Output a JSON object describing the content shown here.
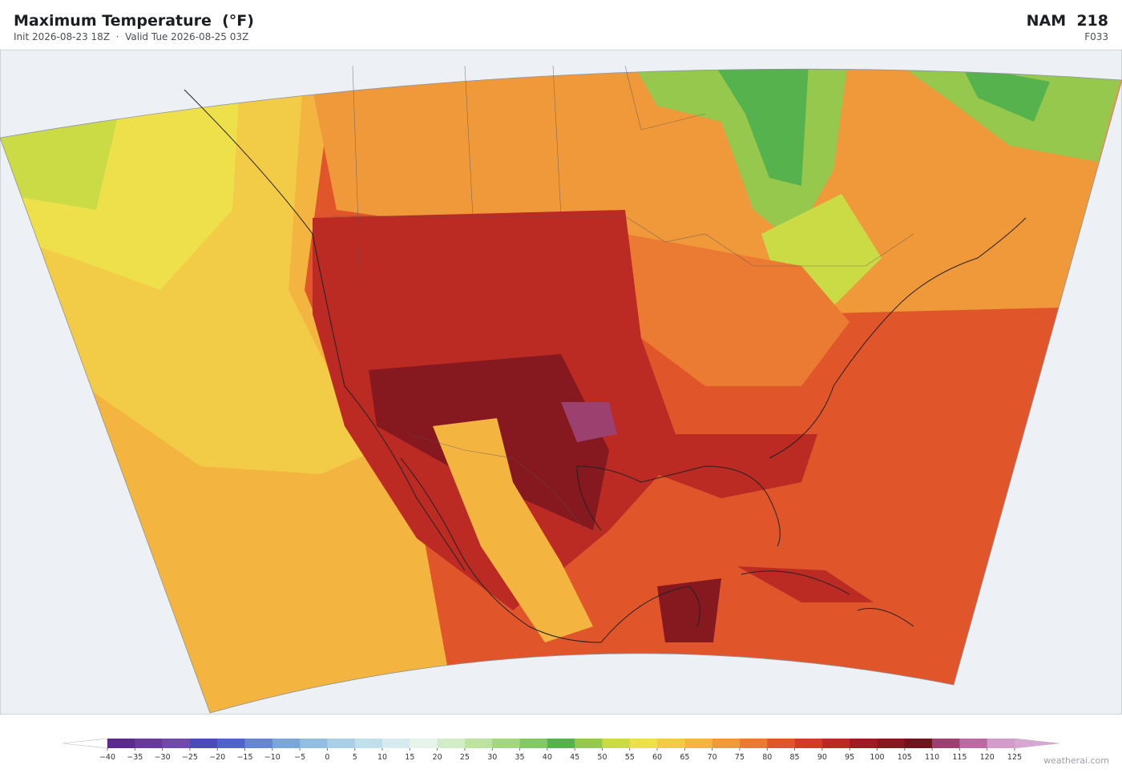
{
  "header": {
    "title": "Maximum Temperature  (°F)",
    "subtitle": "Init 2026-08-23 18Z  ·  Valid Tue 2026-08-25 03Z",
    "model": "NAM  218",
    "forecast_hour": "F033"
  },
  "colorbar": {
    "ticks": [
      {
        "value": -40,
        "label": "−40"
      },
      {
        "value": -35,
        "label": "−35"
      },
      {
        "value": -30,
        "label": "−30"
      },
      {
        "value": -25,
        "label": "−25"
      },
      {
        "value": -20,
        "label": "−20"
      },
      {
        "value": -15,
        "label": "−15"
      },
      {
        "value": -10,
        "label": "−10"
      },
      {
        "value": -5,
        "label": "−5"
      },
      0,
      5,
      10,
      15,
      20,
      25,
      30,
      35,
      40,
      45,
      50,
      55,
      60,
      65,
      70,
      75,
      80,
      85,
      90,
      95,
      100,
      105,
      110,
      115,
      120,
      125
    ],
    "colors": [
      "#5b2a8c",
      "#6a3a9a",
      "#6f4aab",
      "#4a4ab8",
      "#4f63c8",
      "#6487d0",
      "#7aa6d8",
      "#90bde0",
      "#a9d0e6",
      "#c0dfec",
      "#d6ebef",
      "#e6f3ea",
      "#d3ecc8",
      "#bde3a0",
      "#a2d67f",
      "#82c865",
      "#55b24c",
      "#95c84d",
      "#cbdb45",
      "#ede04a",
      "#f3cc47",
      "#f3b540",
      "#f0993a",
      "#eb7b32",
      "#e0562a",
      "#d23b26",
      "#bb2a23",
      "#9e1c22",
      "#861820",
      "#6e141b",
      "#9c4070",
      "#bb6aa3",
      "#d49ccb"
    ],
    "under_color": "#ffffff",
    "over_color": "#d8a6d2"
  },
  "credit": "weatherai.com"
}
